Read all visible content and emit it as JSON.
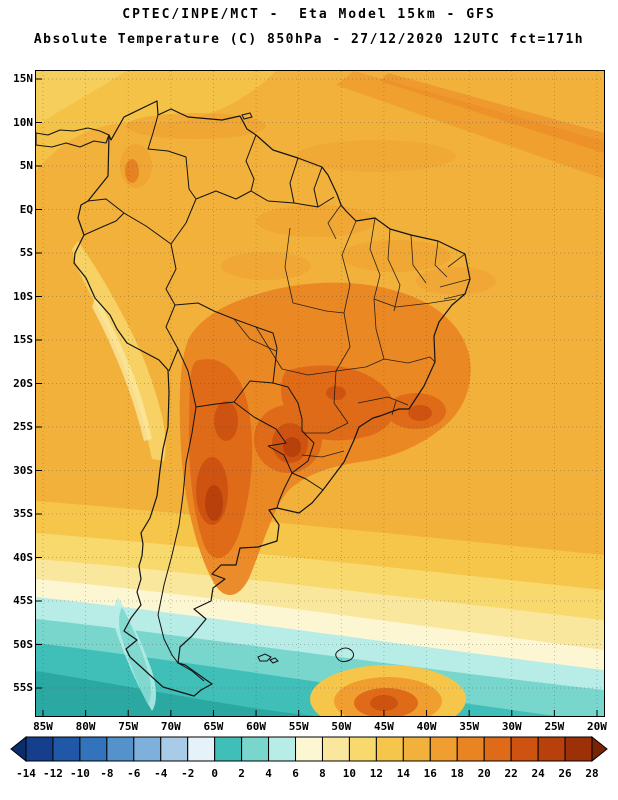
{
  "header": {
    "line1": "CPTEC/INPE/MCT -  Eta Model 15km - GFS",
    "line2": "Absolute Temperature (C) 850hPa - 27/12/2020 12UTC fct=171h"
  },
  "map": {
    "lat_labels": [
      "15N",
      "10N",
      "5N",
      "EQ",
      "5S",
      "10S",
      "15S",
      "20S",
      "25S",
      "30S",
      "35S",
      "40S",
      "45S",
      "50S",
      "55S"
    ],
    "lon_labels": [
      "85W",
      "80W",
      "75W",
      "70W",
      "65W",
      "60W",
      "55W",
      "50W",
      "45W",
      "40W",
      "35W",
      "30W",
      "25W",
      "20W"
    ]
  },
  "colorbar": {
    "tick_labels": [
      "-14",
      "-12",
      "-10",
      "-8",
      "-6",
      "-4",
      "-2",
      "0",
      "2",
      "4",
      "6",
      "8",
      "10",
      "12",
      "14",
      "16",
      "18",
      "20",
      "22",
      "24",
      "26",
      "28"
    ],
    "segment_colors": [
      "#0A2D6E",
      "#153F8C",
      "#2057A6",
      "#3273BC",
      "#5592CC",
      "#7FB0DC",
      "#A8CCE8",
      "#E6F2FA",
      "#3FBFB7",
      "#79D6CC",
      "#B8EDE7",
      "#FDF6D2",
      "#FAE79E",
      "#F8D96E",
      "#F5C649",
      "#F2B13A",
      "#EF9E2F",
      "#E98423",
      "#DF6B18",
      "#CE5310",
      "#B8400B",
      "#9C3107",
      "#7A2404"
    ]
  },
  "chart_data": {
    "type": "heatmap",
    "title": "Absolute Temperature (C) 850hPa",
    "source_header": "CPTEC/INPE/MCT -  Eta Model 15km - GFS",
    "valid": "27/12/2020 12UTC fct=171h",
    "units": "C",
    "region": "South America",
    "x_ticks": [
      "85W",
      "80W",
      "75W",
      "70W",
      "65W",
      "60W",
      "55W",
      "50W",
      "45W",
      "40W",
      "35W",
      "30W",
      "25W",
      "20W"
    ],
    "y_ticks": [
      "15N",
      "10N",
      "5N",
      "EQ",
      "5S",
      "10S",
      "15S",
      "20S",
      "25S",
      "30S",
      "35S",
      "40S",
      "45S",
      "50S",
      "55S"
    ],
    "colorbar_ticks": [
      -14,
      -12,
      -10,
      -8,
      -6,
      -4,
      -2,
      0,
      2,
      4,
      6,
      8,
      10,
      12,
      14,
      16,
      18,
      20,
      22,
      24,
      26,
      28
    ],
    "legend_position": "bottom",
    "grid": true
  }
}
